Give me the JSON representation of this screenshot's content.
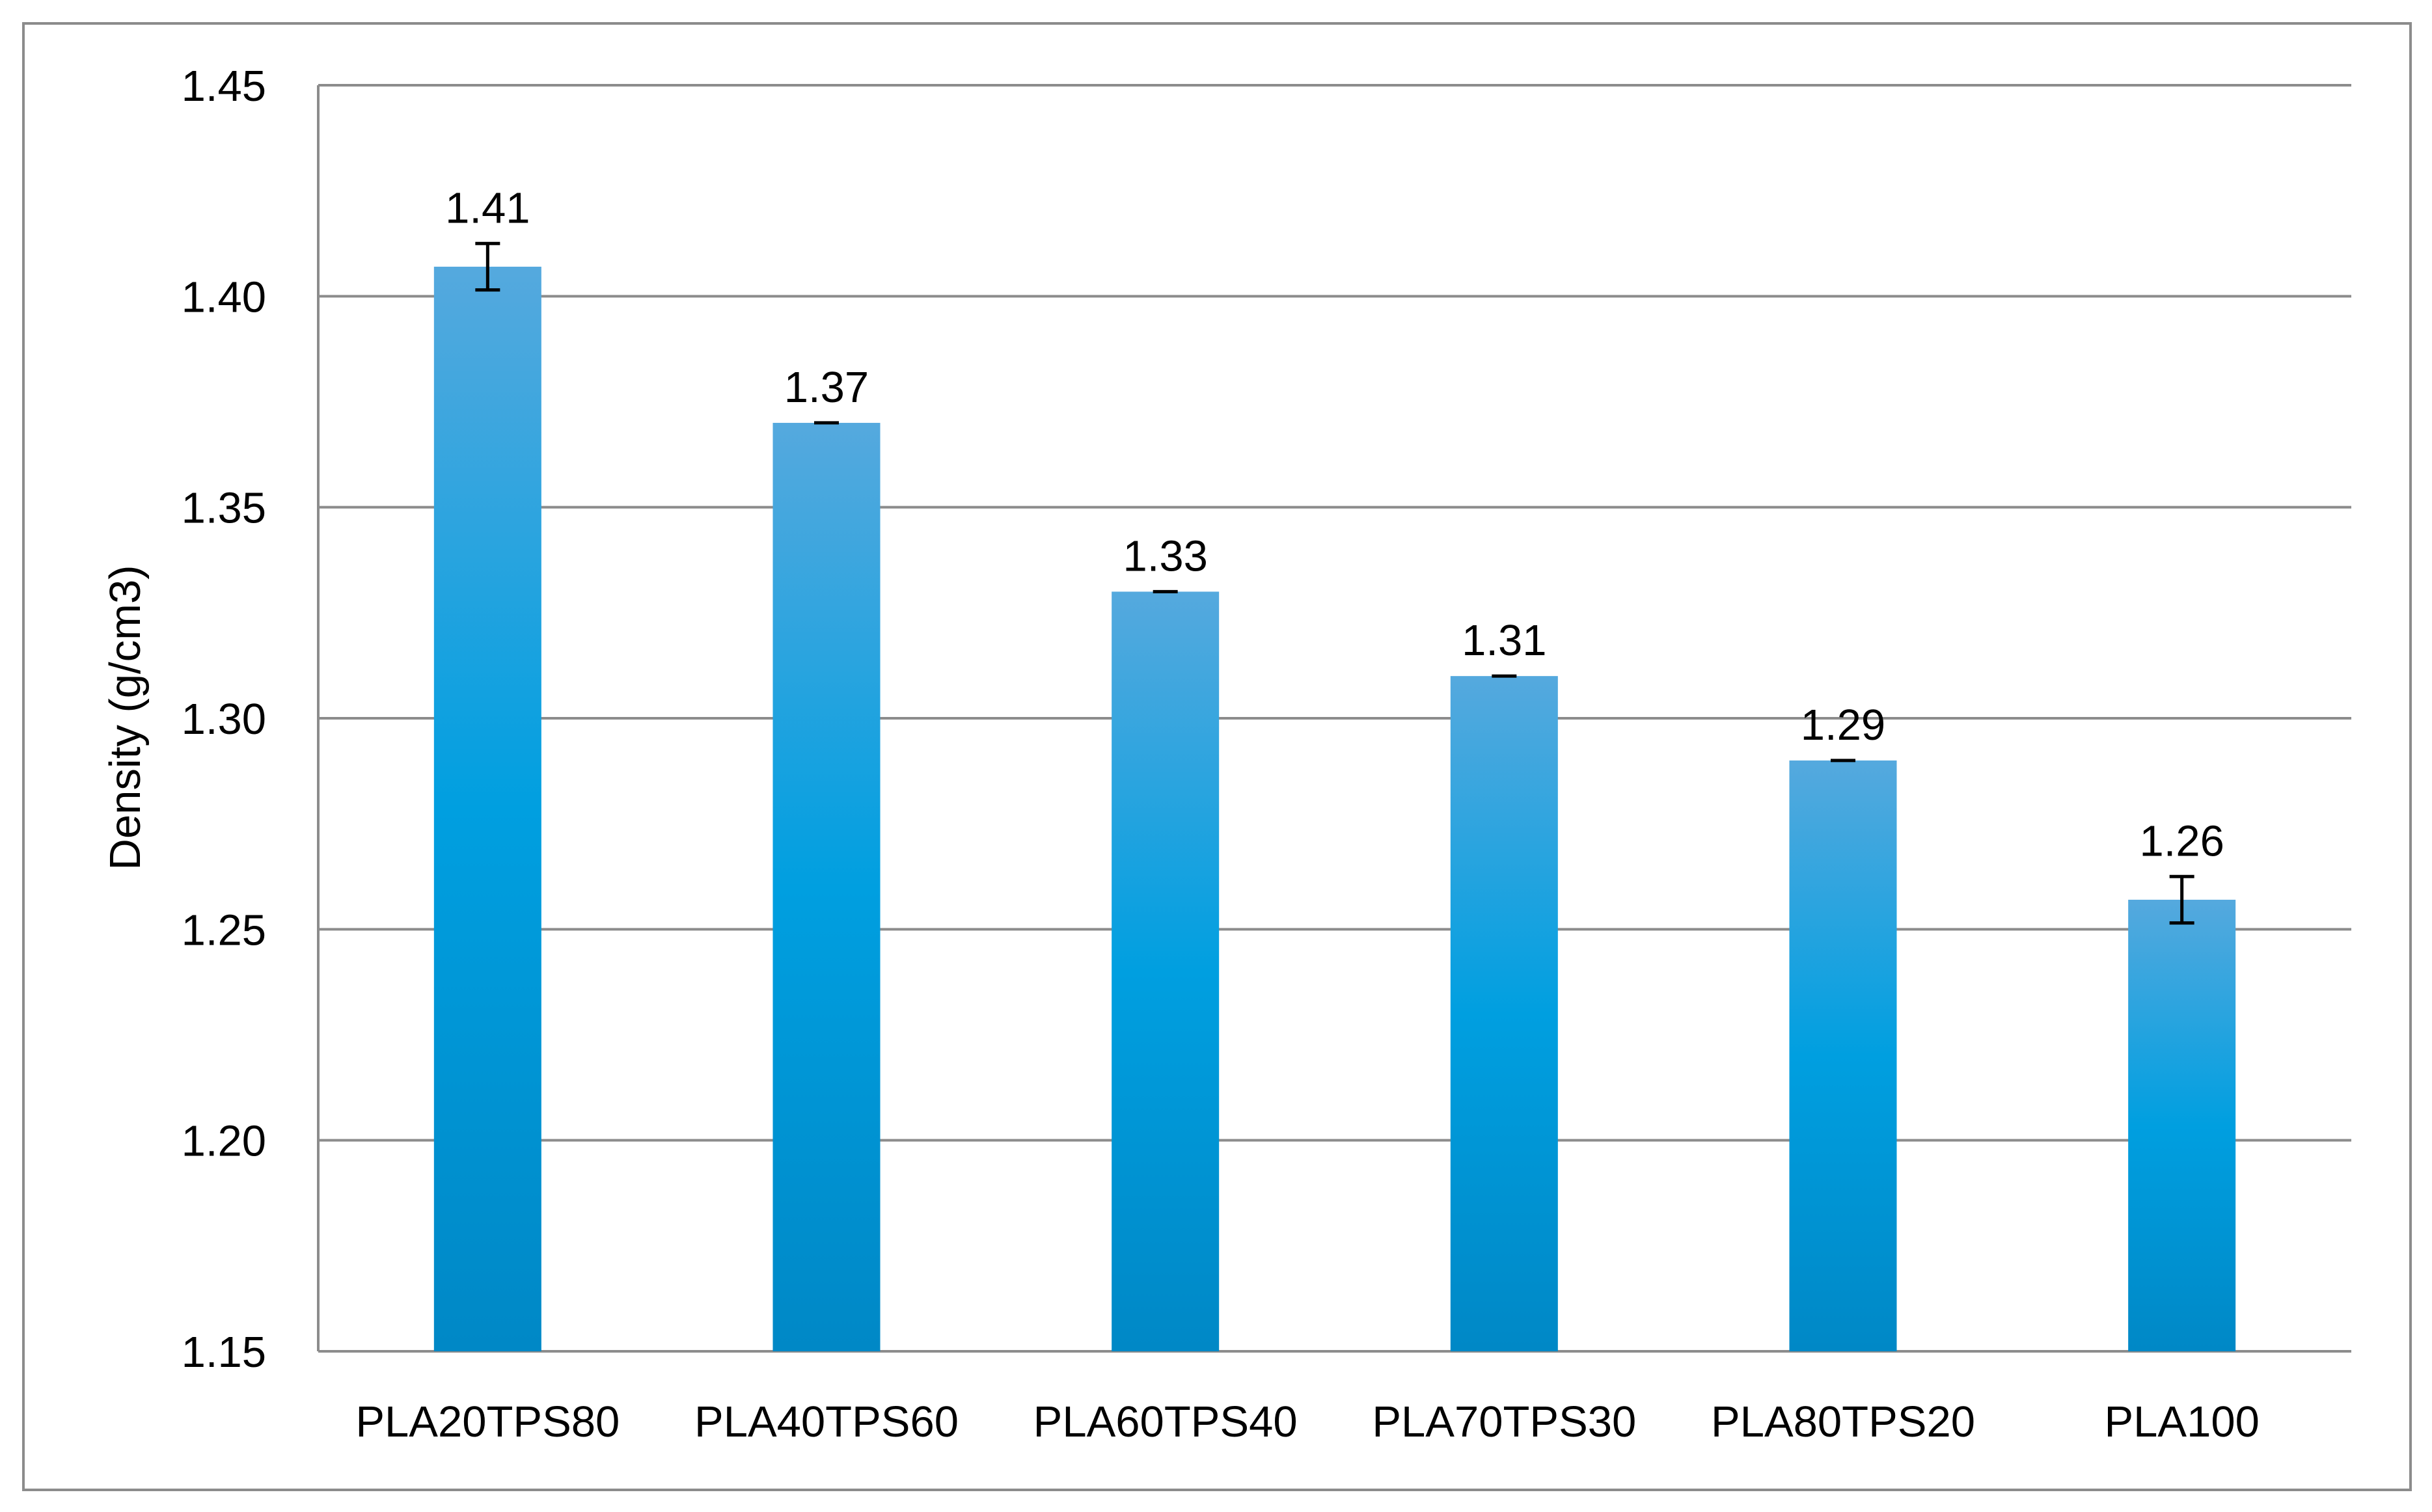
{
  "chart_data": {
    "type": "bar",
    "title": "",
    "xlabel": "",
    "ylabel": "Density (g/cm3)",
    "categories": [
      "PLA20TPS80",
      "PLA40TPS60",
      "PLA60TPS40",
      "PLA70TPS30",
      "PLA80TPS20",
      "PLA100"
    ],
    "values": [
      1.407,
      1.37,
      1.33,
      1.31,
      1.29,
      1.257
    ],
    "data_labels": [
      "1.41",
      "1.37",
      "1.33",
      "1.31",
      "1.29",
      "1.26"
    ],
    "error": [
      0.0055,
      0,
      0,
      0,
      0,
      0.0055
    ],
    "ylim": [
      1.15,
      1.45
    ],
    "yticks": [
      1.15,
      1.2,
      1.25,
      1.3,
      1.35,
      1.4,
      1.45
    ],
    "ytick_labels": [
      "1.15",
      "1.20",
      "1.25",
      "1.30",
      "1.35",
      "1.40",
      "1.45"
    ],
    "grid": true,
    "legend": "none",
    "colors": {
      "bar_top": "#55a9de",
      "bar_mid": "#009fe0",
      "bar_bottom": "#0088c6",
      "grid": "#8c8c8c"
    }
  }
}
